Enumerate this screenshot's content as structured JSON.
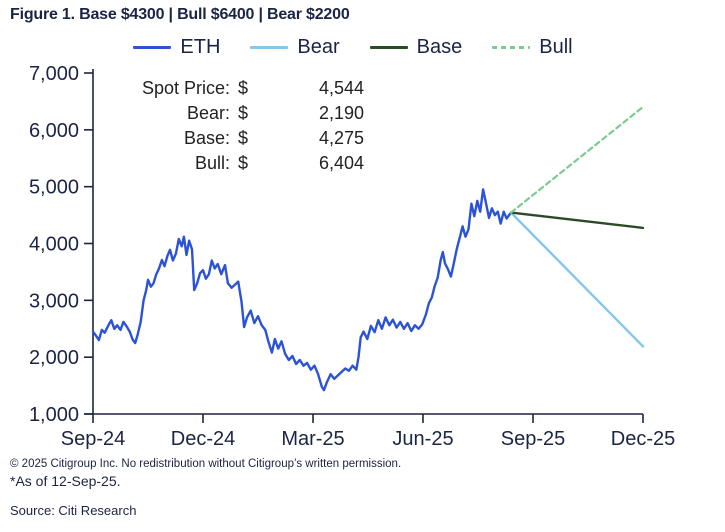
{
  "title": "Figure 1. Base $4300 | Bull $6400 | Bear $2200",
  "legend": [
    {
      "label": "ETH",
      "color": "#2b53d6",
      "style": "solid"
    },
    {
      "label": "Bear",
      "color": "#85c6ee",
      "style": "solid"
    },
    {
      "label": "Base",
      "color": "#2d4a28",
      "style": "solid"
    },
    {
      "label": "Bull",
      "color": "#7ccb92",
      "style": "dashed"
    }
  ],
  "annotation": {
    "rows": [
      {
        "label": "Spot Price:",
        "currency": "$",
        "value": "4,544"
      },
      {
        "label": "Bear:",
        "currency": "$",
        "value": "2,190"
      },
      {
        "label": "Base:",
        "currency": "$",
        "value": "4,275"
      },
      {
        "label": "Bull:",
        "currency": "$",
        "value": "6,404"
      }
    ]
  },
  "footer": {
    "copyright": "© 2025 Citigroup Inc. No redistribution without Citigroup’s written permission.",
    "as_of": "*As of 12-Sep-25.",
    "source": "Source: Citi Research"
  },
  "chart_data": {
    "type": "line",
    "title": "Figure 1. Base $4300 | Bull $6400 | Bear $2200",
    "xlabel": "",
    "ylabel": "",
    "ylim": [
      1000,
      7000
    ],
    "y_ticks": [
      1000,
      2000,
      3000,
      4000,
      5000,
      6000,
      7000
    ],
    "xlim_months": [
      0,
      15
    ],
    "x_tick_months": [
      0,
      3,
      6,
      9,
      12,
      15
    ],
    "x_tick_labels": [
      "Sep-24",
      "Dec-24",
      "Mar-25",
      "Jun-25",
      "Sep-25",
      "Dec-25"
    ],
    "grid": false,
    "legend_position": "top",
    "axis_color": "#1b2444",
    "series": [
      {
        "name": "ETH",
        "color": "#2b53d6",
        "style": "solid",
        "width": 2.4,
        "points": [
          [
            0,
            2450
          ],
          [
            0.08,
            2380
          ],
          [
            0.16,
            2300
          ],
          [
            0.24,
            2480
          ],
          [
            0.32,
            2430
          ],
          [
            0.42,
            2560
          ],
          [
            0.5,
            2650
          ],
          [
            0.58,
            2500
          ],
          [
            0.66,
            2560
          ],
          [
            0.75,
            2480
          ],
          [
            0.83,
            2620
          ],
          [
            0.92,
            2540
          ],
          [
            1.0,
            2450
          ],
          [
            1.08,
            2310
          ],
          [
            1.15,
            2250
          ],
          [
            1.22,
            2400
          ],
          [
            1.3,
            2620
          ],
          [
            1.38,
            3000
          ],
          [
            1.45,
            3180
          ],
          [
            1.5,
            3360
          ],
          [
            1.58,
            3240
          ],
          [
            1.65,
            3300
          ],
          [
            1.72,
            3450
          ],
          [
            1.8,
            3560
          ],
          [
            1.88,
            3710
          ],
          [
            1.95,
            3600
          ],
          [
            2.03,
            3780
          ],
          [
            2.1,
            3890
          ],
          [
            2.18,
            3700
          ],
          [
            2.26,
            3820
          ],
          [
            2.34,
            4080
          ],
          [
            2.42,
            3950
          ],
          [
            2.48,
            4120
          ],
          [
            2.55,
            3800
          ],
          [
            2.62,
            4050
          ],
          [
            2.7,
            3900
          ],
          [
            2.76,
            3180
          ],
          [
            2.84,
            3300
          ],
          [
            2.92,
            3480
          ],
          [
            3.0,
            3530
          ],
          [
            3.08,
            3380
          ],
          [
            3.16,
            3460
          ],
          [
            3.24,
            3700
          ],
          [
            3.32,
            3560
          ],
          [
            3.4,
            3640
          ],
          [
            3.5,
            3460
          ],
          [
            3.6,
            3620
          ],
          [
            3.68,
            3300
          ],
          [
            3.78,
            3220
          ],
          [
            3.88,
            3280
          ],
          [
            3.96,
            3330
          ],
          [
            4.05,
            2980
          ],
          [
            4.12,
            2530
          ],
          [
            4.2,
            2700
          ],
          [
            4.3,
            2820
          ],
          [
            4.4,
            2600
          ],
          [
            4.5,
            2720
          ],
          [
            4.6,
            2560
          ],
          [
            4.7,
            2480
          ],
          [
            4.78,
            2280
          ],
          [
            4.88,
            2080
          ],
          [
            4.96,
            2320
          ],
          [
            5.05,
            2150
          ],
          [
            5.14,
            2280
          ],
          [
            5.24,
            2060
          ],
          [
            5.34,
            1950
          ],
          [
            5.44,
            2020
          ],
          [
            5.54,
            1880
          ],
          [
            5.64,
            1950
          ],
          [
            5.74,
            1850
          ],
          [
            5.84,
            1900
          ],
          [
            5.94,
            1780
          ],
          [
            6.04,
            1850
          ],
          [
            6.14,
            1700
          ],
          [
            6.24,
            1480
          ],
          [
            6.3,
            1420
          ],
          [
            6.38,
            1560
          ],
          [
            6.48,
            1700
          ],
          [
            6.58,
            1620
          ],
          [
            6.68,
            1680
          ],
          [
            6.78,
            1740
          ],
          [
            6.88,
            1800
          ],
          [
            6.98,
            1760
          ],
          [
            7.08,
            1850
          ],
          [
            7.18,
            1780
          ],
          [
            7.24,
            2000
          ],
          [
            7.3,
            2350
          ],
          [
            7.38,
            2450
          ],
          [
            7.48,
            2320
          ],
          [
            7.58,
            2550
          ],
          [
            7.68,
            2440
          ],
          [
            7.78,
            2650
          ],
          [
            7.88,
            2500
          ],
          [
            7.98,
            2700
          ],
          [
            8.08,
            2560
          ],
          [
            8.18,
            2660
          ],
          [
            8.28,
            2520
          ],
          [
            8.38,
            2620
          ],
          [
            8.48,
            2500
          ],
          [
            8.58,
            2600
          ],
          [
            8.68,
            2460
          ],
          [
            8.78,
            2560
          ],
          [
            8.88,
            2500
          ],
          [
            8.98,
            2580
          ],
          [
            9.08,
            2750
          ],
          [
            9.16,
            2950
          ],
          [
            9.24,
            3050
          ],
          [
            9.32,
            3250
          ],
          [
            9.4,
            3400
          ],
          [
            9.48,
            3700
          ],
          [
            9.54,
            3850
          ],
          [
            9.6,
            3650
          ],
          [
            9.68,
            3550
          ],
          [
            9.76,
            3420
          ],
          [
            9.84,
            3650
          ],
          [
            9.92,
            3900
          ],
          [
            10.0,
            4100
          ],
          [
            10.08,
            4300
          ],
          [
            10.16,
            4120
          ],
          [
            10.24,
            4250
          ],
          [
            10.32,
            4700
          ],
          [
            10.4,
            4480
          ],
          [
            10.48,
            4750
          ],
          [
            10.56,
            4560
          ],
          [
            10.64,
            4950
          ],
          [
            10.72,
            4700
          ],
          [
            10.8,
            4450
          ],
          [
            10.88,
            4620
          ],
          [
            10.96,
            4500
          ],
          [
            11.04,
            4560
          ],
          [
            11.12,
            4350
          ],
          [
            11.2,
            4560
          ],
          [
            11.28,
            4440
          ],
          [
            11.4,
            4544
          ]
        ]
      },
      {
        "name": "Bear",
        "color": "#85c6ee",
        "style": "solid",
        "width": 2.4,
        "points": [
          [
            11.4,
            4544
          ],
          [
            15,
            2190
          ]
        ]
      },
      {
        "name": "Base",
        "color": "#2d4a28",
        "style": "solid",
        "width": 2.4,
        "points": [
          [
            11.4,
            4544
          ],
          [
            15,
            4275
          ]
        ]
      },
      {
        "name": "Bull",
        "color": "#7ccb92",
        "style": "dashed",
        "width": 2.2,
        "points": [
          [
            11.4,
            4544
          ],
          [
            15,
            6404
          ]
        ]
      }
    ]
  }
}
